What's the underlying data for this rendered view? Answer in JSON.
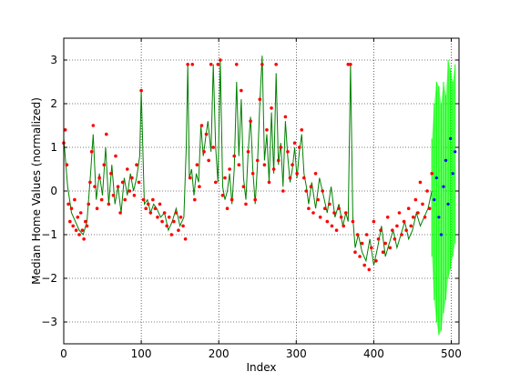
{
  "chart_data": {
    "type": "line",
    "title": "",
    "xlabel": "Index",
    "ylabel": "Median Home Values (normalized)",
    "xlim": [
      0,
      510
    ],
    "ylim": [
      -3.5,
      3.5
    ],
    "grid": true,
    "xticks": [
      0,
      100,
      200,
      300,
      400,
      500
    ],
    "yticks": [
      -3,
      -2,
      -1,
      0,
      1,
      2,
      3
    ],
    "colors": {
      "observed": "#ff0000",
      "fit_line": "#008000",
      "prediction_band": "#00ff00",
      "predictions": "#0000ff"
    },
    "series": [
      {
        "kind": "fit_line",
        "x": [
          0,
          5,
          10,
          15,
          20,
          25,
          30,
          35,
          38,
          42,
          46,
          50,
          54,
          58,
          62,
          66,
          70,
          74,
          78,
          82,
          86,
          90,
          94,
          98,
          100,
          104,
          108,
          112,
          116,
          120,
          125,
          130,
          135,
          140,
          145,
          150,
          155,
          158,
          160,
          162,
          165,
          168,
          171,
          174,
          177,
          180,
          183,
          186,
          190,
          193,
          196,
          199,
          202,
          205,
          208,
          211,
          214,
          217,
          220,
          223,
          226,
          229,
          232,
          235,
          238,
          241,
          244,
          247,
          250,
          253,
          256,
          259,
          262,
          265,
          268,
          271,
          274,
          277,
          280,
          283,
          286,
          289,
          292,
          295,
          298,
          301,
          304,
          307,
          310,
          313,
          316,
          320,
          325,
          330,
          335,
          340,
          345,
          350,
          355,
          360,
          364,
          367,
          370,
          373,
          376,
          380,
          385,
          390,
          395,
          400,
          405,
          410,
          415,
          420,
          425,
          430,
          435,
          440,
          445,
          450,
          455,
          460,
          465,
          470,
          475
        ],
        "y": [
          1.2,
          0.1,
          -0.5,
          -0.7,
          -0.9,
          -1.0,
          -0.7,
          0.5,
          1.3,
          -0.2,
          0.4,
          -0.1,
          1.0,
          -0.3,
          0.6,
          -0.3,
          0.1,
          -0.5,
          0.3,
          -0.1,
          0.4,
          0.0,
          0.3,
          0.8,
          2.3,
          -0.3,
          -0.2,
          -0.5,
          -0.3,
          -0.4,
          -0.6,
          -0.5,
          -0.9,
          -0.7,
          -0.4,
          -0.8,
          -0.6,
          1.0,
          2.9,
          0.3,
          0.5,
          -0.1,
          0.4,
          0.2,
          1.5,
          0.8,
          1.2,
          1.6,
          0.9,
          2.9,
          1.0,
          0.2,
          3.0,
          0.1,
          -0.2,
          0.0,
          0.4,
          -0.3,
          0.5,
          2.5,
          0.8,
          2.1,
          0.3,
          -0.2,
          0.9,
          1.7,
          0.5,
          -0.3,
          0.6,
          2.0,
          3.1,
          0.7,
          1.3,
          0.2,
          1.8,
          0.4,
          2.7,
          0.6,
          1.1,
          0.1,
          1.6,
          0.8,
          0.2,
          0.5,
          1.0,
          0.3,
          0.9,
          1.3,
          0.4,
          0.1,
          -0.3,
          0.2,
          -0.4,
          0.3,
          -0.1,
          -0.5,
          0.1,
          -0.6,
          -0.3,
          -0.8,
          -0.5,
          -0.7,
          2.9,
          -0.6,
          -1.3,
          -1.0,
          -1.4,
          -1.6,
          -1.1,
          -1.7,
          -1.3,
          -0.8,
          -1.5,
          -1.2,
          -0.9,
          -1.3,
          -1.0,
          -0.7,
          -1.1,
          -0.9,
          -0.5,
          -0.8,
          -0.6,
          -0.4,
          0.0
        ]
      },
      {
        "kind": "observed",
        "x": [
          0,
          2,
          4,
          6,
          8,
          10,
          12,
          14,
          16,
          18,
          20,
          22,
          24,
          26,
          28,
          30,
          32,
          34,
          36,
          38,
          40,
          43,
          46,
          49,
          52,
          55,
          58,
          61,
          64,
          67,
          70,
          73,
          76,
          79,
          82,
          85,
          88,
          91,
          94,
          97,
          100,
          103,
          106,
          109,
          112,
          115,
          118,
          121,
          124,
          127,
          130,
          133,
          136,
          139,
          142,
          145,
          148,
          151,
          154,
          157,
          160,
          163,
          166,
          169,
          172,
          175,
          178,
          181,
          184,
          187,
          190,
          193,
          196,
          199,
          202,
          205,
          208,
          211,
          214,
          217,
          220,
          223,
          226,
          229,
          232,
          235,
          238,
          241,
          244,
          247,
          250,
          253,
          256,
          259,
          262,
          265,
          268,
          271,
          274,
          277,
          280,
          283,
          286,
          289,
          292,
          295,
          298,
          301,
          304,
          307,
          310,
          313,
          316,
          319,
          322,
          325,
          328,
          331,
          334,
          337,
          340,
          343,
          346,
          349,
          352,
          355,
          358,
          361,
          364,
          367,
          370,
          373,
          376,
          379,
          382,
          385,
          388,
          391,
          394,
          397,
          400,
          403,
          406,
          409,
          412,
          415,
          418,
          421,
          424,
          427,
          430,
          433,
          436,
          439,
          442,
          445,
          448,
          451,
          454,
          457,
          460,
          463,
          466,
          469,
          472,
          475
        ],
        "y": [
          1.1,
          1.4,
          0.6,
          -0.3,
          -0.7,
          -0.4,
          -0.8,
          -0.2,
          -0.9,
          -0.6,
          -1.0,
          -0.5,
          -0.9,
          -1.1,
          -0.7,
          -0.8,
          -0.3,
          0.2,
          0.9,
          1.5,
          0.1,
          -0.4,
          0.3,
          -0.2,
          0.6,
          1.3,
          -0.3,
          0.4,
          -0.1,
          0.8,
          0.1,
          -0.5,
          0.2,
          -0.2,
          0.5,
          0.0,
          0.3,
          -0.1,
          0.6,
          0.2,
          2.3,
          -0.2,
          -0.4,
          -0.3,
          -0.5,
          -0.2,
          -0.4,
          -0.6,
          -0.3,
          -0.7,
          -0.5,
          -0.8,
          -0.6,
          -1.0,
          -0.7,
          -0.5,
          -0.9,
          -0.6,
          -0.8,
          -1.1,
          2.9,
          0.3,
          2.9,
          -0.2,
          0.6,
          0.1,
          1.5,
          0.9,
          1.3,
          0.7,
          2.9,
          1.0,
          0.2,
          2.9,
          3.0,
          -0.1,
          0.3,
          -0.4,
          0.5,
          -0.2,
          0.8,
          2.9,
          0.6,
          2.3,
          0.1,
          -0.3,
          0.9,
          1.6,
          0.4,
          -0.2,
          0.7,
          2.1,
          2.9,
          0.6,
          1.4,
          0.2,
          1.9,
          0.5,
          2.9,
          0.7,
          1.0,
          0.0,
          1.7,
          0.9,
          0.3,
          0.6,
          1.1,
          0.4,
          1.0,
          1.4,
          0.3,
          0.0,
          -0.4,
          0.1,
          -0.5,
          0.4,
          -0.2,
          -0.6,
          0.0,
          -0.4,
          -0.7,
          -0.3,
          -0.8,
          -0.5,
          -0.9,
          -0.4,
          -0.6,
          -0.8,
          -0.5,
          2.9,
          2.9,
          -0.7,
          -1.4,
          -1.0,
          -1.5,
          -1.2,
          -1.7,
          -1.0,
          -1.8,
          -1.3,
          -0.7,
          -1.6,
          -1.1,
          -0.9,
          -1.4,
          -1.2,
          -0.6,
          -1.3,
          -0.9,
          -1.1,
          -0.8,
          -0.5,
          -1.0,
          -0.7,
          -0.9,
          -0.4,
          -0.8,
          -0.6,
          -0.2,
          -0.5,
          0.2,
          -0.3,
          -0.6,
          0.0,
          -0.4,
          0.4
        ]
      },
      {
        "kind": "predictions",
        "x": [
          478,
          481,
          484,
          487,
          490,
          493,
          496,
          499,
          502,
          505
        ],
        "y": [
          -0.2,
          0.3,
          -0.6,
          -1.0,
          0.1,
          0.7,
          -0.3,
          1.2,
          0.4,
          0.9
        ]
      }
    ],
    "prediction_band": {
      "x": [
        475,
        478,
        481,
        484,
        487,
        490,
        493,
        496,
        499,
        502,
        505
      ],
      "lower": [
        -1.5,
        -2.5,
        -3.0,
        -3.3,
        -3.2,
        -2.8,
        -2.5,
        -2.0,
        -1.8,
        -1.5,
        -1.2
      ],
      "upper": [
        1.2,
        2.0,
        2.5,
        2.4,
        2.0,
        2.5,
        2.2,
        3.0,
        2.8,
        2.5,
        2.9
      ]
    }
  }
}
